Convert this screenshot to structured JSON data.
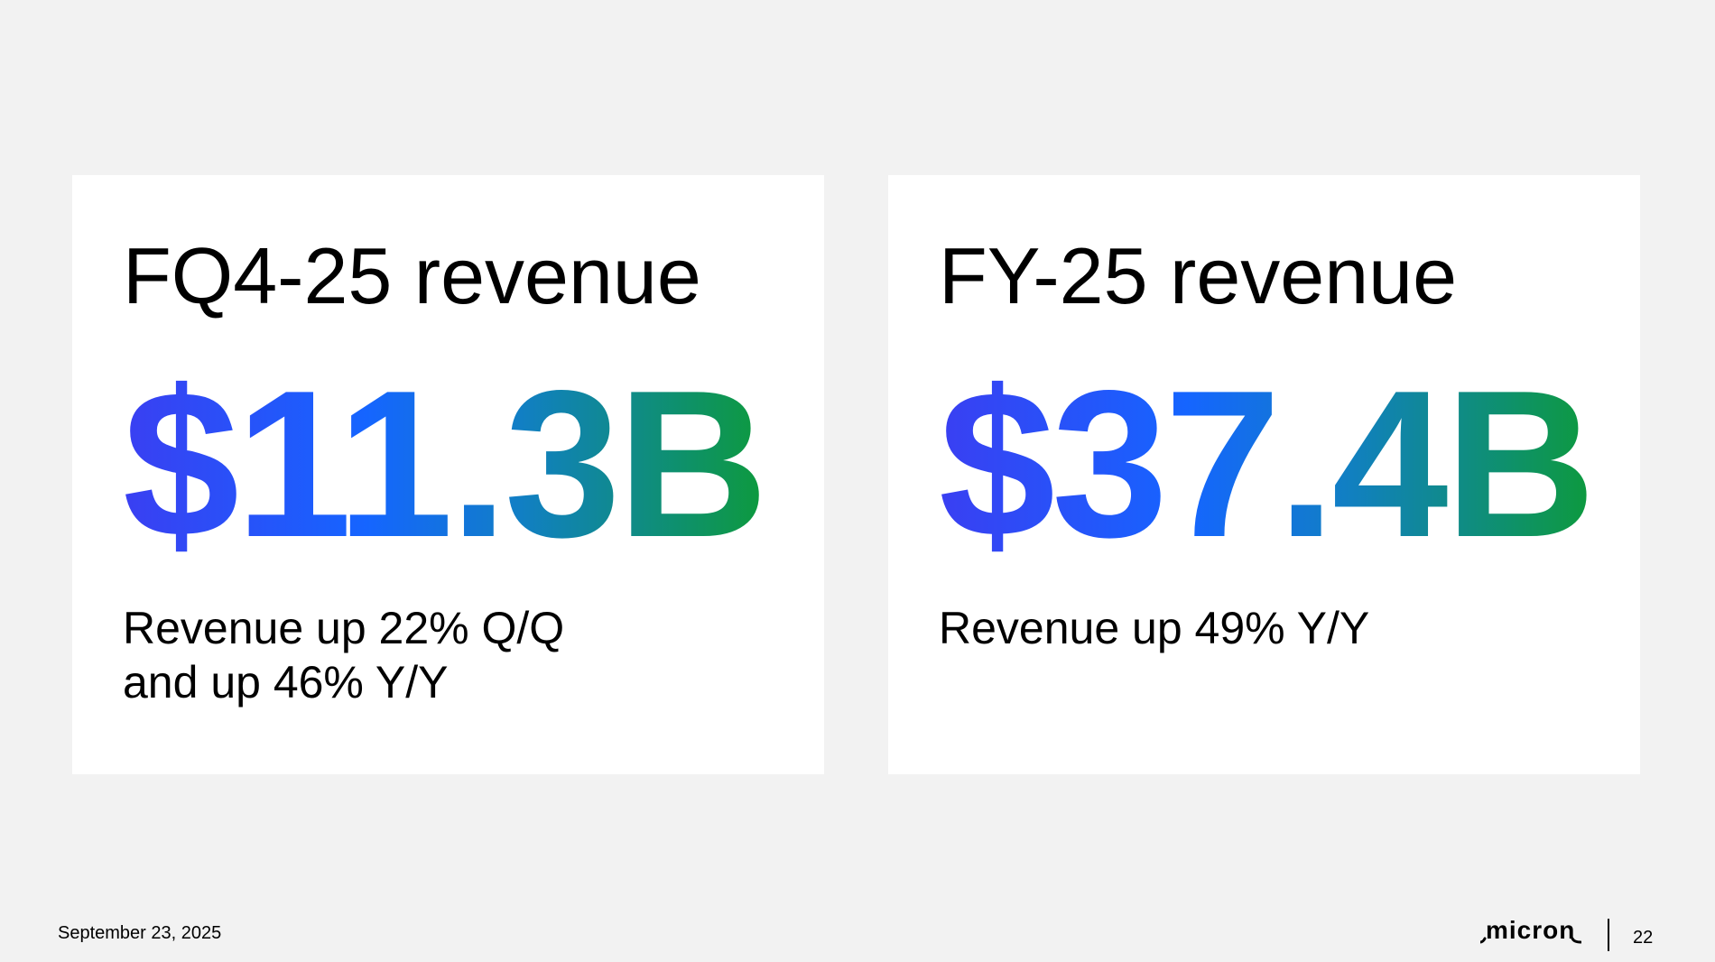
{
  "cards": [
    {
      "title": "FQ4-25 revenue",
      "value": "$11.3B",
      "description_lines": [
        "Revenue up 22% Q/Q",
        "and up 46% Y/Y"
      ]
    },
    {
      "title": "FY-25 revenue",
      "value": "$37.4B",
      "description_lines": [
        "Revenue up 49% Y/Y"
      ]
    }
  ],
  "footer": {
    "date": "September 23, 2025",
    "logo_text": "micron",
    "page_number": "22"
  },
  "colors": {
    "background": "#f2f2f2",
    "card": "#ffffff",
    "gradient_start": "#3a3ff2",
    "gradient_mid": "#1565ff",
    "gradient_end": "#0d9a3d"
  }
}
